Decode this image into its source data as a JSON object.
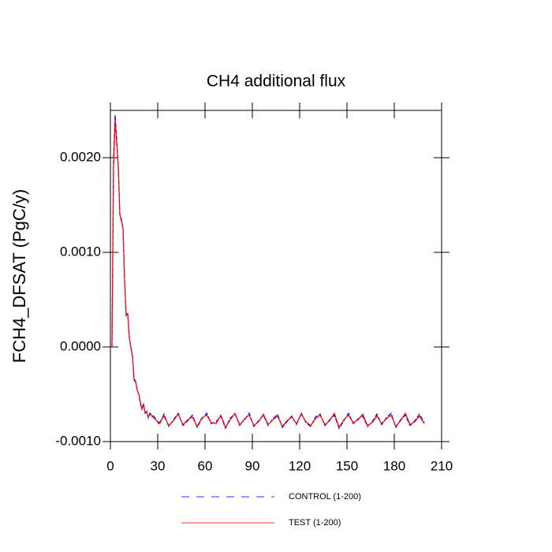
{
  "chart_data": {
    "type": "line",
    "title": "CH4 additional flux",
    "y_label": "FCH4_DFSAT  (PgC/y)",
    "x": [
      1,
      2,
      3,
      4,
      5,
      6,
      7,
      8,
      9,
      10,
      11,
      12,
      13,
      14,
      15,
      16,
      17,
      18,
      19,
      20,
      21,
      22,
      23,
      24,
      25,
      28,
      31,
      34,
      37,
      40,
      43,
      46,
      49,
      52,
      55,
      58,
      61,
      64,
      67,
      70,
      73,
      76,
      79,
      82,
      85,
      88,
      91,
      94,
      97,
      100,
      103,
      106,
      109,
      112,
      115,
      118,
      121,
      124,
      127,
      130,
      133,
      136,
      139,
      142,
      145,
      148,
      151,
      154,
      157,
      160,
      163,
      166,
      169,
      172,
      175,
      178,
      181,
      184,
      187,
      190,
      193,
      196,
      199
    ],
    "series": [
      {
        "name": "CONTROL (1-200)",
        "color": "#0000ff",
        "dashed": true,
        "values": [
          0.0,
          0.002,
          0.00245,
          0.0022,
          0.0019,
          0.0014,
          0.00135,
          0.00125,
          0.0007,
          0.00035,
          0.00035,
          0.0001,
          0.0,
          -0.0001,
          -0.00035,
          -0.00037,
          -0.00045,
          -0.0005,
          -0.0006,
          -0.00065,
          -0.0006,
          -0.0007,
          -0.00068,
          -0.00075,
          -0.0007,
          -0.00074,
          -0.00082,
          -0.00071,
          -0.00084,
          -0.00077,
          -0.0007,
          -0.00083,
          -0.00078,
          -0.00072,
          -0.00085,
          -0.00076,
          -0.0007,
          -0.00081,
          -0.00079,
          -0.00073,
          -0.00086,
          -0.00075,
          -0.00071,
          -0.00082,
          -0.00077,
          -0.0007,
          -0.00084,
          -0.00078,
          -0.00072,
          -0.00083,
          -0.00076,
          -0.00071,
          -0.00085,
          -0.00079,
          -0.00073,
          -0.00082,
          -0.0007,
          -0.0008,
          -0.00084,
          -0.00074,
          -0.00071,
          -0.00083,
          -0.00077,
          -0.00072,
          -0.00086,
          -0.00078,
          -0.0007,
          -0.00081,
          -0.00076,
          -0.00073,
          -0.00084,
          -0.00079,
          -0.00071,
          -0.00082,
          -0.00075,
          -0.0007,
          -0.00085,
          -0.00077,
          -0.00072,
          -0.00083,
          -0.00078,
          -0.00071,
          -0.0008
        ]
      },
      {
        "name": "TEST (1-200)",
        "color": "#ff0000",
        "dashed": false,
        "values": [
          0.0,
          0.0019,
          0.0024,
          0.00215,
          0.0019,
          0.0014,
          0.00133,
          0.00125,
          0.0007,
          0.00033,
          0.00035,
          0.0001,
          0.0,
          -0.0001,
          -0.00034,
          -0.00036,
          -0.00046,
          -0.0005,
          -0.00058,
          -0.00066,
          -0.00061,
          -0.00069,
          -0.00069,
          -0.00074,
          -0.00071,
          -0.00076,
          -0.0008,
          -0.00073,
          -0.00083,
          -0.00078,
          -0.00071,
          -0.00082,
          -0.00077,
          -0.00074,
          -0.00084,
          -0.00075,
          -0.00072,
          -0.0008,
          -0.00081,
          -0.00072,
          -0.00085,
          -0.00077,
          -0.0007,
          -0.00083,
          -0.00076,
          -0.00072,
          -0.00083,
          -0.00079,
          -0.00071,
          -0.00082,
          -0.00077,
          -0.00073,
          -0.00084,
          -0.00078,
          -0.00074,
          -0.00081,
          -0.00071,
          -0.00079,
          -0.00083,
          -0.00076,
          -0.00072,
          -0.00082,
          -0.00078,
          -0.0007,
          -0.00085,
          -0.00077,
          -0.00072,
          -0.0008,
          -0.00077,
          -0.00071,
          -0.00083,
          -0.0008,
          -0.00073,
          -0.00081,
          -0.00076,
          -0.00072,
          -0.00084,
          -0.00078,
          -0.0007,
          -0.00082,
          -0.00079,
          -0.00073,
          -0.00081
        ]
      }
    ],
    "xlim": [
      0,
      210
    ],
    "xticks": [
      0,
      30,
      60,
      90,
      120,
      150,
      180,
      210
    ],
    "ylim": [
      -0.001,
      0.0025
    ],
    "yticks": [
      {
        "value": -0.001,
        "label": "-0.0010"
      },
      {
        "value": 0.0,
        "label": "0.0000"
      },
      {
        "value": 0.001,
        "label": "0.0010"
      },
      {
        "value": 0.002,
        "label": "0.0020"
      }
    ],
    "grid": false,
    "legend": "bottom"
  }
}
